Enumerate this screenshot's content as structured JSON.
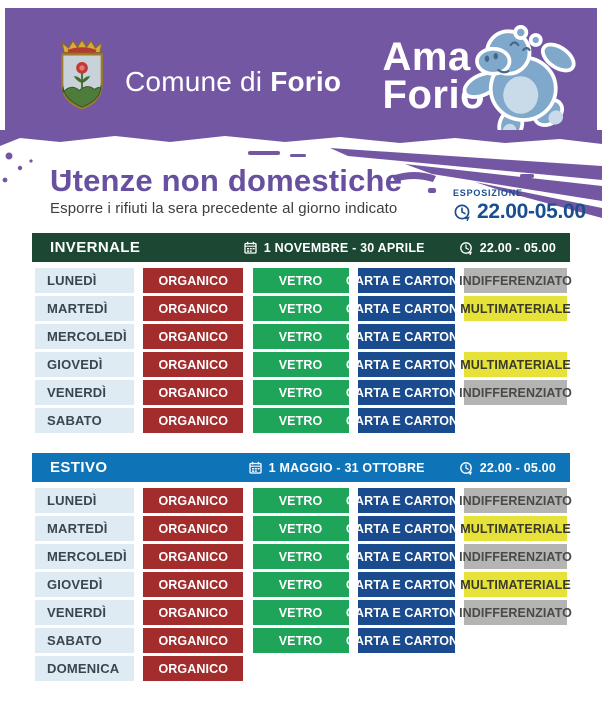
{
  "header": {
    "municipality_prefix": "Comune di",
    "municipality_name": "Forio",
    "logo_line1": "Ama",
    "logo_line2": "Forio"
  },
  "intro": {
    "title": "Utenze non domestiche",
    "subtitle": "Esporre i rifiuti la sera precedente al giorno indicato",
    "exposure_label": "ESPOSIZIONE",
    "exposure_time": "22.00-05.00"
  },
  "colors": {
    "masthead_purple": "#7457A3",
    "title_purple": "#6850A0",
    "exposure_blue": "#1A4E8F",
    "day_cell_bg": "#DEEBF3",
    "day_text": "#3A4551"
  },
  "waste_types": {
    "ORGANICO": {
      "bg": "#A32C2C",
      "text": "#FFFFFF"
    },
    "VETRO": {
      "bg": "#1EA55A",
      "text": "#FFFFFF"
    },
    "CARTA E CARTONE": {
      "bg": "#1A4B8E",
      "text": "#FFFFFF"
    },
    "INDIFFERENZIATO": {
      "bg": "#B4B4B3",
      "text": "#494949"
    },
    "MULTIMATERIALE": {
      "bg": "#E6E23A",
      "text": "#3B3B2A"
    }
  },
  "sections": [
    {
      "id": "invernale",
      "label": "INVERNALE",
      "period": "1 NOVEMBRE - 30 APRILE",
      "time": "22.00 - 05.00",
      "header_color": "#1B4733",
      "rows": [
        {
          "day": "LUNEDÌ",
          "items": [
            "ORGANICO",
            "VETRO",
            "CARTA E CARTONE",
            "INDIFFERENZIATO"
          ]
        },
        {
          "day": "MARTEDÌ",
          "items": [
            "ORGANICO",
            "VETRO",
            "CARTA E CARTONE",
            "MULTIMATERIALE"
          ]
        },
        {
          "day": "MERCOLEDÌ",
          "items": [
            "ORGANICO",
            "VETRO",
            "CARTA E CARTONE"
          ]
        },
        {
          "day": "GIOVEDÌ",
          "items": [
            "ORGANICO",
            "VETRO",
            "CARTA E CARTONE",
            "MULTIMATERIALE"
          ]
        },
        {
          "day": "VENERDÌ",
          "items": [
            "ORGANICO",
            "VETRO",
            "CARTA E CARTONE",
            "INDIFFERENZIATO"
          ]
        },
        {
          "day": "SABATO",
          "items": [
            "ORGANICO",
            "VETRO",
            "CARTA E CARTONE"
          ]
        }
      ]
    },
    {
      "id": "estivo",
      "label": "ESTIVO",
      "period": "1 MAGGIO - 31 OTTOBRE",
      "time": "22.00 - 05.00",
      "header_color": "#0F73B8",
      "rows": [
        {
          "day": "LUNEDÌ",
          "items": [
            "ORGANICO",
            "VETRO",
            "CARTA E CARTONE",
            "INDIFFERENZIATO"
          ]
        },
        {
          "day": "MARTEDÌ",
          "items": [
            "ORGANICO",
            "VETRO",
            "CARTA E CARTONE",
            "MULTIMATERIALE"
          ]
        },
        {
          "day": "MERCOLEDÌ",
          "items": [
            "ORGANICO",
            "VETRO",
            "CARTA E CARTONE",
            "INDIFFERENZIATO"
          ]
        },
        {
          "day": "GIOVEDÌ",
          "items": [
            "ORGANICO",
            "VETRO",
            "CARTA E CARTONE",
            "MULTIMATERIALE"
          ]
        },
        {
          "day": "VENERDÌ",
          "items": [
            "ORGANICO",
            "VETRO",
            "CARTA E CARTONE",
            "INDIFFERENZIATO"
          ]
        },
        {
          "day": "SABATO",
          "items": [
            "ORGANICO",
            "VETRO",
            "CARTA E CARTONE"
          ]
        },
        {
          "day": "DOMENICA",
          "items": [
            "ORGANICO"
          ]
        }
      ]
    }
  ]
}
